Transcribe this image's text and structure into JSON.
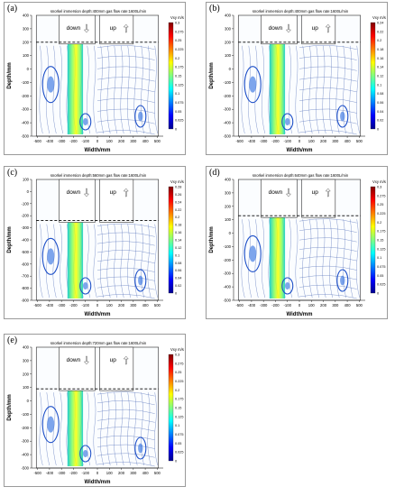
{
  "figure": {
    "panels": [
      {
        "letter": "(a)",
        "title": "snorkel immersion depth:400mm   gas flow rate:1600L/min"
      },
      {
        "letter": "(b)",
        "title": "snorkel immersion depth:400mm   gas flow rate:1600L/min"
      },
      {
        "letter": "(c)",
        "title": "snorkel immersion depth:560mm   gas flow rate:1600L/min"
      },
      {
        "letter": "(d)",
        "title": "snorkel immersion depth:640mm   gas flow rate:1600L/min"
      },
      {
        "letter": "(e)",
        "title": "snorkel immersion depth:720mm   gas flow rate:1600L/min"
      }
    ]
  },
  "chart_data": [
    {
      "type": "heatmap",
      "title": "snorkel immersion depth:400mm   gas flow rate:1600L/min",
      "xlabel": "Width/mm",
      "ylabel": "Depth/mm",
      "xlim": [
        -550,
        550
      ],
      "ylim": [
        -500,
        400
      ],
      "xticks": [
        -500,
        -400,
        -300,
        -200,
        -100,
        0,
        100,
        200,
        300,
        400,
        500
      ],
      "yticks": [
        -500,
        -400,
        -300,
        -200,
        -100,
        0,
        100,
        200,
        300,
        400
      ],
      "annotations": [
        "down",
        "up"
      ],
      "colorbar": {
        "label": "Vxy m/s",
        "ticks": [
          0.3,
          0.275,
          0.25,
          0.225,
          0.2,
          0.175,
          0.15,
          0.125,
          0.1,
          0.075,
          0.05,
          0.025,
          0
        ]
      },
      "bath_surface_y": 200
    },
    {
      "type": "heatmap",
      "title": "snorkel immersion depth:400mm   gas flow rate:1600L/min",
      "xlabel": "Width/mm",
      "ylabel": "Depth/mm",
      "xlim": [
        -550,
        550
      ],
      "ylim": [
        -500,
        400
      ],
      "xticks": [
        -500,
        -400,
        -300,
        -200,
        -100,
        0,
        100,
        200,
        300,
        400,
        500
      ],
      "yticks": [
        -500,
        -400,
        -300,
        -200,
        -100,
        0,
        100,
        200,
        300,
        400
      ],
      "annotations": [
        "down",
        "up"
      ],
      "colorbar": {
        "label": "Vxy m/s",
        "ticks": [
          0.24,
          0.22,
          0.2,
          0.18,
          0.16,
          0.14,
          0.12,
          0.1,
          0.08,
          0.06,
          0.04,
          0.02,
          0
        ]
      },
      "bath_surface_y": 200
    },
    {
      "type": "heatmap",
      "title": "snorkel immersion depth:560mm   gas flow rate:1600L/min",
      "xlabel": "Width/mm",
      "ylabel": "Depth/mm",
      "xlim": [
        -550,
        550
      ],
      "ylim": [
        -900,
        100
      ],
      "xticks": [
        -500,
        -400,
        -300,
        -200,
        -100,
        0,
        100,
        200,
        300,
        400,
        500
      ],
      "yticks": [
        -900,
        -800,
        -700,
        -600,
        -500,
        -400,
        -300,
        -200,
        -100,
        0,
        100
      ],
      "annotations": [
        "down",
        "up"
      ],
      "colorbar": {
        "label": "Vxy m/s",
        "ticks": [
          0.28,
          0.26,
          0.24,
          0.22,
          0.2,
          0.18,
          0.16,
          0.14,
          0.12,
          0.1,
          0.08,
          0.06,
          0.04,
          0.02,
          0
        ]
      },
      "bath_surface_y": -240
    },
    {
      "type": "heatmap",
      "title": "snorkel immersion depth:640mm   gas flow rate:1600L/min",
      "xlabel": "Width/mm",
      "ylabel": "Depth/mm",
      "xlim": [
        -550,
        550
      ],
      "ylim": [
        -500,
        400
      ],
      "xticks": [
        -500,
        -400,
        -300,
        -200,
        -100,
        0,
        100,
        200,
        300,
        400,
        500
      ],
      "yticks": [
        -500,
        -400,
        -300,
        -200,
        -100,
        0,
        100,
        200,
        300,
        400
      ],
      "annotations": [
        "down",
        "up"
      ],
      "colorbar": {
        "label": "Vxy m/s",
        "ticks": [
          0.3,
          0.275,
          0.25,
          0.225,
          0.2,
          0.175,
          0.15,
          0.125,
          0.1,
          0.075,
          0.05,
          0.025,
          0
        ]
      },
      "bath_surface_y": 130
    },
    {
      "type": "heatmap",
      "title": "snorkel immersion depth:720mm   gas flow rate:1600L/min",
      "xlabel": "Width/mm",
      "ylabel": "Depth/mm",
      "xlim": [
        -550,
        550
      ],
      "ylim": [
        -500,
        400
      ],
      "xticks": [
        -500,
        -400,
        -300,
        -200,
        -100,
        0,
        100,
        200,
        300,
        400,
        500
      ],
      "yticks": [
        -500,
        -400,
        -300,
        -200,
        -100,
        0,
        100,
        200,
        300,
        400
      ],
      "annotations": [
        "down",
        "up"
      ],
      "colorbar": {
        "label": "Vxy m/s",
        "ticks": [
          0.3,
          0.275,
          0.25,
          0.225,
          0.2,
          0.175,
          0.15,
          0.125,
          0.1,
          0.075,
          0.05,
          0.025,
          0
        ]
      },
      "bath_surface_y": 90
    }
  ]
}
